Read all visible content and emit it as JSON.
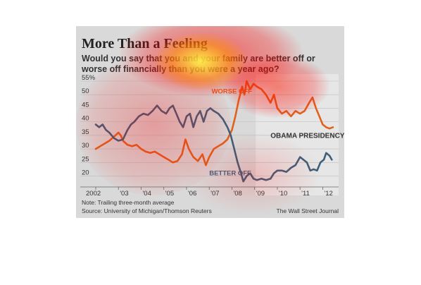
{
  "figure": {
    "title": "More Than a Feeling",
    "subtitle": "Would you say that you and your family are better off or worse off financially than you were a year ago?",
    "note": "Note: Trailing three-month average",
    "source": "Source: University of Michigan/Thomson Reuters",
    "credit": "The Wall Street Journal"
  },
  "chart_data": {
    "type": "line",
    "xlim": [
      2002,
      2012.7
    ],
    "ylim": [
      17,
      55
    ],
    "yticks": [
      20,
      25,
      30,
      35,
      40,
      45,
      50,
      55
    ],
    "ytick_labels": [
      "20",
      "25",
      "30",
      "35",
      "40",
      "45",
      "50",
      "55%"
    ],
    "xticks": [
      2002,
      2003,
      2004,
      2005,
      2006,
      2007,
      2008,
      2009,
      2010,
      2011,
      2012
    ],
    "xtick_labels": [
      "2002",
      "'03",
      "'04",
      "'05",
      "'06",
      "'07",
      "'08",
      "'09",
      "'10",
      "'11",
      "'12"
    ],
    "shaded_region": {
      "x": [
        2009.05,
        2012.7
      ],
      "label": "OBAMA PRESIDENCY"
    },
    "series": [
      {
        "name": "WORSE OFF",
        "color": "#e0621c",
        "points": [
          [
            2002.0,
            30
          ],
          [
            2002.2,
            31
          ],
          [
            2002.4,
            32
          ],
          [
            2002.6,
            33
          ],
          [
            2002.8,
            34.5
          ],
          [
            2003.0,
            36
          ],
          [
            2003.1,
            35
          ],
          [
            2003.2,
            33
          ],
          [
            2003.4,
            31.5
          ],
          [
            2003.6,
            31
          ],
          [
            2003.8,
            31.5
          ],
          [
            2004.0,
            30
          ],
          [
            2004.2,
            29
          ],
          [
            2004.4,
            28.5
          ],
          [
            2004.6,
            29
          ],
          [
            2004.8,
            28
          ],
          [
            2005.0,
            27
          ],
          [
            2005.2,
            26
          ],
          [
            2005.4,
            25
          ],
          [
            2005.6,
            25.5
          ],
          [
            2005.8,
            28
          ],
          [
            2005.95,
            33.5
          ],
          [
            2006.1,
            30
          ],
          [
            2006.3,
            27
          ],
          [
            2006.5,
            25.5
          ],
          [
            2006.7,
            28
          ],
          [
            2006.85,
            24
          ],
          [
            2007.0,
            27
          ],
          [
            2007.2,
            30
          ],
          [
            2007.4,
            31
          ],
          [
            2007.6,
            32
          ],
          [
            2007.8,
            33.5
          ],
          [
            2008.0,
            37
          ],
          [
            2008.15,
            42
          ],
          [
            2008.3,
            48
          ],
          [
            2008.45,
            53
          ],
          [
            2008.55,
            50
          ],
          [
            2008.65,
            55
          ],
          [
            2008.8,
            52
          ],
          [
            2008.95,
            54
          ],
          [
            2009.1,
            53
          ],
          [
            2009.3,
            52
          ],
          [
            2009.5,
            50
          ],
          [
            2009.7,
            47
          ],
          [
            2009.85,
            50
          ],
          [
            2010.0,
            45
          ],
          [
            2010.2,
            43
          ],
          [
            2010.4,
            44
          ],
          [
            2010.6,
            42
          ],
          [
            2010.8,
            44
          ],
          [
            2011.0,
            43
          ],
          [
            2011.2,
            44
          ],
          [
            2011.4,
            47
          ],
          [
            2011.55,
            49
          ],
          [
            2011.7,
            45
          ],
          [
            2011.85,
            42
          ],
          [
            2012.0,
            39
          ],
          [
            2012.15,
            38
          ],
          [
            2012.3,
            37.5
          ],
          [
            2012.45,
            38
          ]
        ]
      },
      {
        "name": "BETTER OFF",
        "color": "#3e5f7a",
        "points": [
          [
            2002.0,
            39
          ],
          [
            2002.15,
            38
          ],
          [
            2002.3,
            39
          ],
          [
            2002.45,
            37
          ],
          [
            2002.6,
            36
          ],
          [
            2002.8,
            34
          ],
          [
            2003.0,
            33
          ],
          [
            2003.2,
            33.5
          ],
          [
            2003.4,
            37
          ],
          [
            2003.55,
            39
          ],
          [
            2003.7,
            40
          ],
          [
            2003.9,
            42
          ],
          [
            2004.1,
            43
          ],
          [
            2004.3,
            42.5
          ],
          [
            2004.5,
            44
          ],
          [
            2004.7,
            46
          ],
          [
            2004.9,
            44
          ],
          [
            2005.1,
            43
          ],
          [
            2005.25,
            45
          ],
          [
            2005.4,
            46
          ],
          [
            2005.55,
            43
          ],
          [
            2005.7,
            40
          ],
          [
            2005.85,
            38
          ],
          [
            2006.0,
            42
          ],
          [
            2006.15,
            43
          ],
          [
            2006.3,
            38
          ],
          [
            2006.45,
            42
          ],
          [
            2006.6,
            44
          ],
          [
            2006.75,
            40
          ],
          [
            2006.9,
            44
          ],
          [
            2007.05,
            45
          ],
          [
            2007.2,
            44
          ],
          [
            2007.4,
            43
          ],
          [
            2007.6,
            41
          ],
          [
            2007.8,
            38
          ],
          [
            2007.95,
            35
          ],
          [
            2008.1,
            30
          ],
          [
            2008.25,
            25
          ],
          [
            2008.4,
            21
          ],
          [
            2008.5,
            18
          ],
          [
            2008.65,
            20
          ],
          [
            2008.8,
            21
          ],
          [
            2008.95,
            19
          ],
          [
            2009.1,
            18.5
          ],
          [
            2009.3,
            19
          ],
          [
            2009.5,
            18.5
          ],
          [
            2009.7,
            19
          ],
          [
            2009.85,
            21
          ],
          [
            2010.0,
            22
          ],
          [
            2010.2,
            22
          ],
          [
            2010.4,
            21.5
          ],
          [
            2010.6,
            23
          ],
          [
            2010.8,
            24
          ],
          [
            2011.0,
            27
          ],
          [
            2011.15,
            26
          ],
          [
            2011.3,
            25
          ],
          [
            2011.45,
            22
          ],
          [
            2011.6,
            22.5
          ],
          [
            2011.75,
            22
          ],
          [
            2011.9,
            25
          ],
          [
            2012.05,
            26
          ],
          [
            2012.15,
            28.5
          ],
          [
            2012.3,
            27.5
          ],
          [
            2012.4,
            26
          ]
        ]
      }
    ]
  }
}
